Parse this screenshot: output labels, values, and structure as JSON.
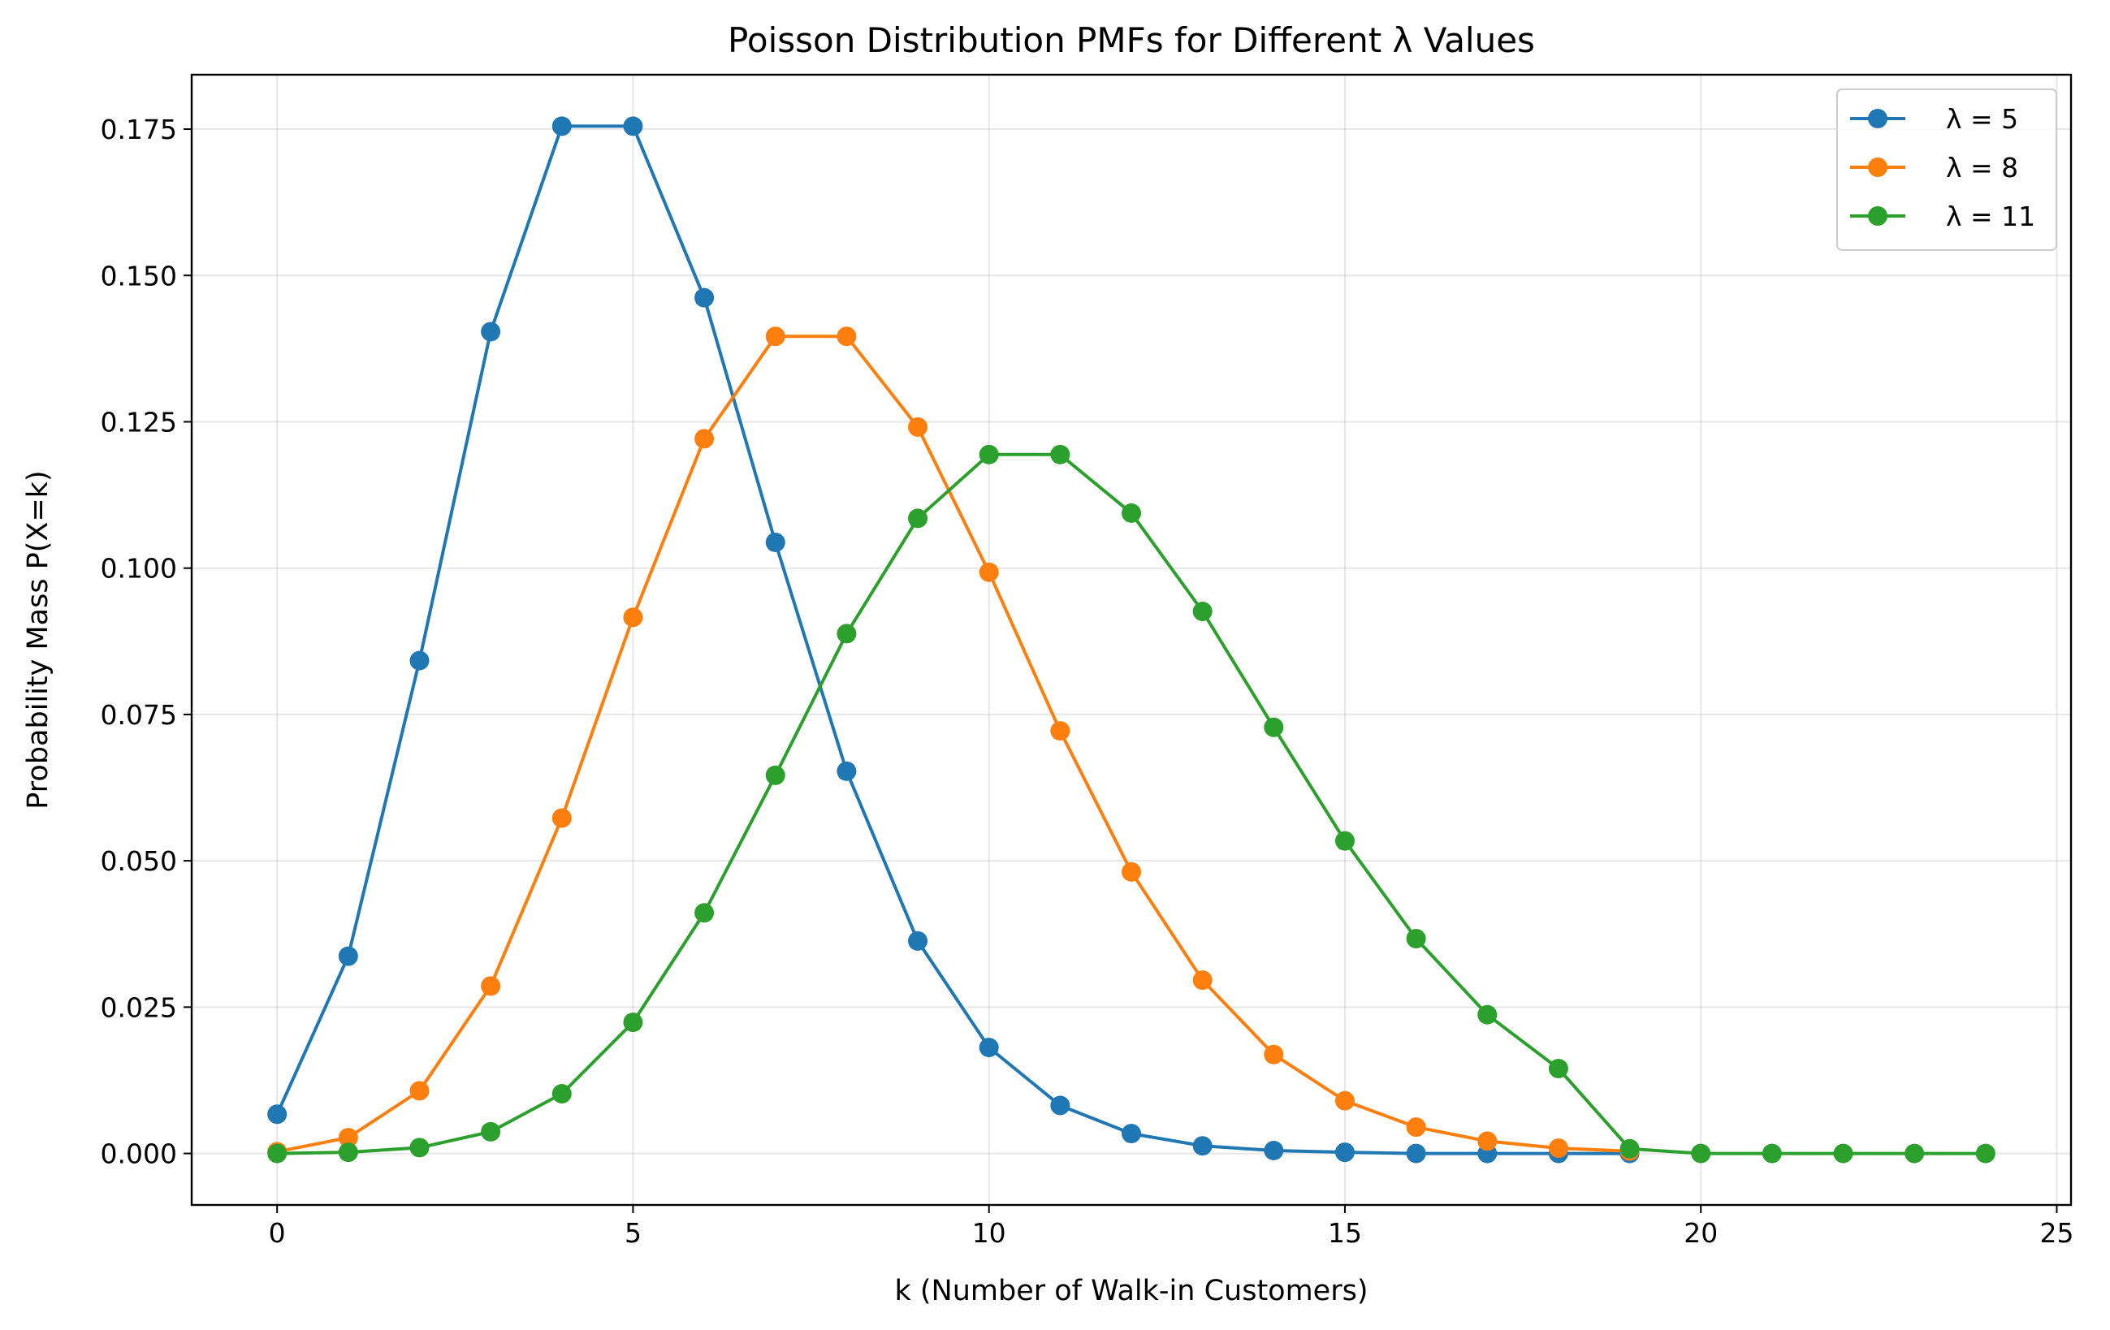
{
  "chart_data": {
    "type": "line",
    "title": "Poisson Distribution PMFs for Different λ Values",
    "xlabel": "k (Number of Walk-in Customers)",
    "ylabel": "Probability Mass P(X=k)",
    "xlim": [
      -1.2,
      25.2
    ],
    "ylim": [
      -0.0088,
      0.1843
    ],
    "xticks": [
      0,
      5,
      10,
      15,
      20,
      25
    ],
    "yticks": [
      0.0,
      0.025,
      0.05,
      0.075,
      0.1,
      0.125,
      0.15,
      0.175
    ],
    "ytick_labels": [
      "0.000",
      "0.025",
      "0.050",
      "0.075",
      "0.100",
      "0.125",
      "0.150",
      "0.175"
    ],
    "grid": true,
    "legend_position": "top-right",
    "marker": "circle",
    "series": [
      {
        "name": "λ = 5",
        "color": "#1f77b4",
        "x": [
          0,
          1,
          2,
          3,
          4,
          5,
          6,
          7,
          8,
          9,
          10,
          11,
          12,
          13,
          14,
          15,
          16,
          17,
          18,
          19
        ],
        "values": [
          0.0067,
          0.0337,
          0.0842,
          0.1404,
          0.1755,
          0.1755,
          0.1462,
          0.1044,
          0.0653,
          0.0363,
          0.0181,
          0.0082,
          0.0034,
          0.0013,
          0.0005,
          0.0002,
          0.0,
          0.0,
          0.0,
          0.0
        ]
      },
      {
        "name": "λ = 8",
        "color": "#ff7f0e",
        "x": [
          0,
          1,
          2,
          3,
          4,
          5,
          6,
          7,
          8,
          9,
          10,
          11,
          12,
          13,
          14,
          15,
          16,
          17,
          18,
          19
        ],
        "values": [
          0.0003,
          0.0027,
          0.0107,
          0.0286,
          0.0573,
          0.0916,
          0.1221,
          0.1396,
          0.1396,
          0.1241,
          0.0993,
          0.0722,
          0.0481,
          0.0296,
          0.0169,
          0.009,
          0.0045,
          0.0021,
          0.0009,
          0.0004
        ]
      },
      {
        "name": "λ = 11",
        "color": "#2ca02c",
        "x": [
          0,
          1,
          2,
          3,
          4,
          5,
          6,
          7,
          8,
          9,
          10,
          11,
          12,
          13,
          14,
          15,
          16,
          17,
          18,
          19,
          20,
          21,
          22,
          23,
          24
        ],
        "values": [
          0.0,
          0.0002,
          0.001,
          0.0037,
          0.0102,
          0.0224,
          0.0411,
          0.0646,
          0.0888,
          0.1085,
          0.1194,
          0.1194,
          0.1094,
          0.0926,
          0.0728,
          0.0534,
          0.0367,
          0.0237,
          0.0145,
          0.0008,
          0.0,
          0.0,
          0.0,
          0.0,
          0.0
        ]
      }
    ]
  }
}
